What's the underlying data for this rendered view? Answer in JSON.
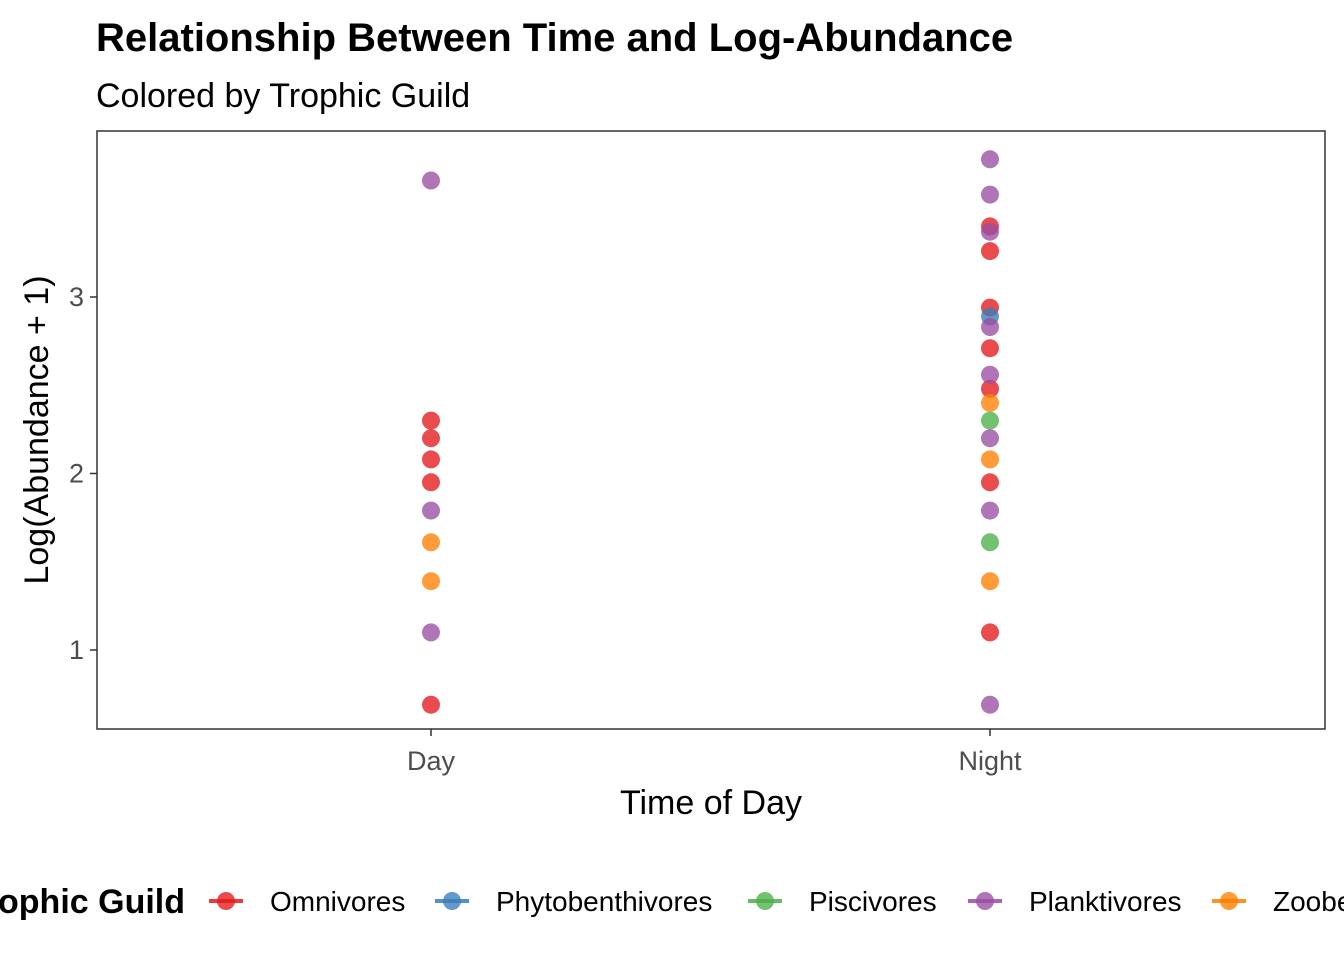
{
  "chart_data": {
    "type": "scatter",
    "title": "Relationship Between Time and Log-Abundance",
    "subtitle": "Colored by Trophic Guild",
    "xlabel": "Time of Day",
    "ylabel": "Log(Abundance + 1)",
    "categories": [
      "Day",
      "Night"
    ],
    "yticks": [
      "1",
      "2",
      "3"
    ],
    "ylim": [
      0.55,
      3.95
    ],
    "grid": false,
    "legend_position": "bottom",
    "legend_title": "Trophic Guild",
    "colors": {
      "Omnivores": "#e41a1c",
      "Phytobenthivores": "#377eb8",
      "Piscivores": "#4daf4a",
      "Planktivores": "#984ea3",
      "Zoobenthivores": "#ff7f00"
    },
    "series": [
      {
        "name": "Omnivores",
        "points": [
          {
            "x": "Day",
            "y": 2.3
          },
          {
            "x": "Day",
            "y": 2.2
          },
          {
            "x": "Day",
            "y": 2.08
          },
          {
            "x": "Day",
            "y": 1.95
          },
          {
            "x": "Day",
            "y": 0.69
          },
          {
            "x": "Night",
            "y": 3.4
          },
          {
            "x": "Night",
            "y": 3.26
          },
          {
            "x": "Night",
            "y": 2.94
          },
          {
            "x": "Night",
            "y": 2.71
          },
          {
            "x": "Night",
            "y": 2.48
          },
          {
            "x": "Night",
            "y": 1.95
          },
          {
            "x": "Night",
            "y": 1.1
          }
        ]
      },
      {
        "name": "Phytobenthivores",
        "points": [
          {
            "x": "Night",
            "y": 2.89
          }
        ]
      },
      {
        "name": "Piscivores",
        "points": [
          {
            "x": "Night",
            "y": 2.3
          },
          {
            "x": "Night",
            "y": 1.61
          }
        ]
      },
      {
        "name": "Planktivores",
        "points": [
          {
            "x": "Day",
            "y": 3.66
          },
          {
            "x": "Day",
            "y": 1.79
          },
          {
            "x": "Day",
            "y": 1.1
          },
          {
            "x": "Night",
            "y": 3.78
          },
          {
            "x": "Night",
            "y": 3.58
          },
          {
            "x": "Night",
            "y": 3.37
          },
          {
            "x": "Night",
            "y": 2.83
          },
          {
            "x": "Night",
            "y": 2.56
          },
          {
            "x": "Night",
            "y": 2.2
          },
          {
            "x": "Night",
            "y": 1.79
          },
          {
            "x": "Night",
            "y": 0.69
          }
        ]
      },
      {
        "name": "Zoobenthivores",
        "points": [
          {
            "x": "Day",
            "y": 1.61
          },
          {
            "x": "Day",
            "y": 1.39
          },
          {
            "x": "Night",
            "y": 2.4
          },
          {
            "x": "Night",
            "y": 2.08
          },
          {
            "x": "Night",
            "y": 1.39
          }
        ]
      }
    ]
  }
}
